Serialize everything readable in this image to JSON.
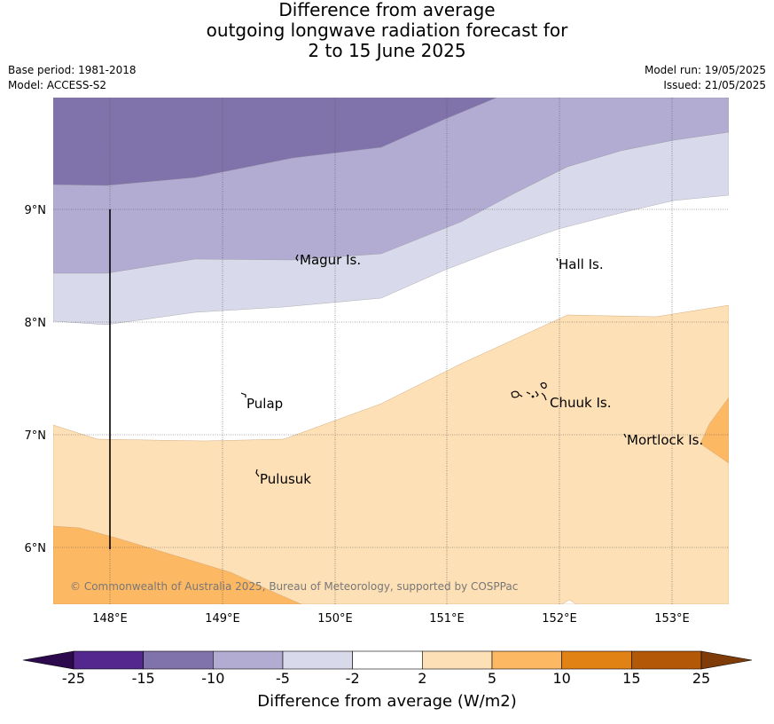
{
  "title": {
    "line1": "Difference from average",
    "line2": "outgoing longwave radiation forecast for",
    "line3": "2 to 15 June 2025"
  },
  "meta": {
    "base_period": "Base period: 1981-2018",
    "model": "Model: ACCESS-S2",
    "model_run": "Model run: 19/05/2025",
    "issued": "Issued: 21/05/2025"
  },
  "map": {
    "lon_labels": [
      "148°E",
      "149°E",
      "150°E",
      "151°E",
      "152°E",
      "153°E"
    ],
    "lat_labels": [
      "9°N",
      "8°N",
      "7°N",
      "6°N"
    ],
    "places": [
      "Magur Is.",
      "Hall Is.",
      "Pulap",
      "Chuuk Is.",
      "Mortlock Is.",
      "Pulusuk"
    ],
    "copyright": "© Commonwealth of Australia 2025, Bureau of Meteorology, supported by COSPPac"
  },
  "colorbar": {
    "label": "Difference from average (W/m2)",
    "ticks": [
      "-25",
      "-15",
      "-10",
      "-5",
      "-2",
      "2",
      "5",
      "10",
      "15",
      "25"
    ],
    "colors": [
      "#2d0a4e",
      "#54278f",
      "#8073ac",
      "#b2abd2",
      "#d8daeb",
      "#ffffff",
      "#fee0b6",
      "#fdb863",
      "#e08214",
      "#b35806",
      "#7f3b08"
    ]
  }
}
